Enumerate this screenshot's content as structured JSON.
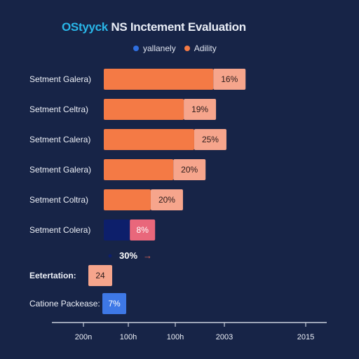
{
  "header": {
    "brand": "OStyyck",
    "title": "NS Inctement Evaluation"
  },
  "legend": [
    {
      "label": "yallanely",
      "color": "#2f6fe0"
    },
    {
      "label": "Adility",
      "color": "#f47a45"
    }
  ],
  "colors": {
    "background": "#172447",
    "primary": "#f47a45",
    "label_box": "#f6a58c",
    "navy": "#0d1f6b",
    "blue": "#3e78e6",
    "axis": "#c8cedb"
  },
  "chart_data": {
    "type": "bar",
    "title": "NS Inctement Evaluation",
    "categories": [
      "Setment Galera)",
      "Setment Celtra)",
      "Setment Calera)",
      "Setment Galera)",
      "Setment Coltra)",
      "Setment Colera)",
      "Eetertation:",
      "Catione Packease:"
    ],
    "series": [
      {
        "name": "yallanely",
        "values": [
          0,
          0,
          0,
          0,
          0,
          15,
          0,
          5
        ]
      },
      {
        "name": "Adility",
        "values": [
          63,
          46,
          52,
          40,
          27,
          0,
          0,
          0
        ]
      }
    ],
    "data_labels": [
      "16%",
      "19%",
      "25%",
      "20%",
      "20%",
      "8%",
      "24",
      "7%"
    ],
    "annotation": "30%",
    "annotation_arrow": "→",
    "x_tick_labels": [
      "200n",
      "100h",
      "100h",
      "2003",
      "2015"
    ],
    "xlim": [
      0,
      100
    ]
  }
}
